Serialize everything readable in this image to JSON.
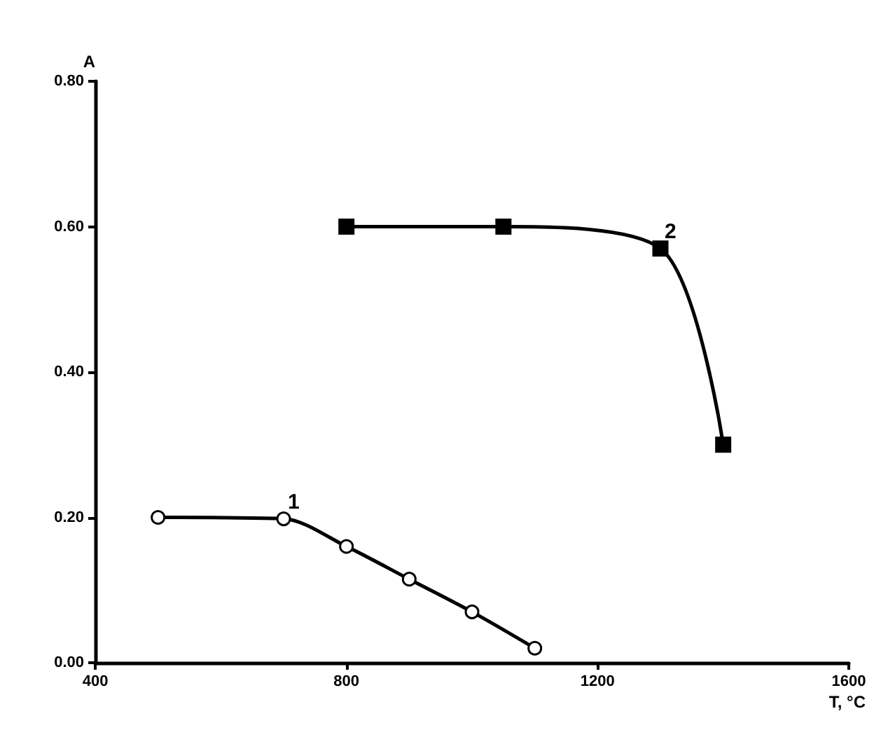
{
  "chart_data": {
    "type": "line",
    "xlabel": "T, °C",
    "ylabel": "A",
    "series": [
      {
        "color": "#000000",
        "marker": "circle",
        "x": [
          500,
          700,
          800,
          900,
          1000,
          1100
        ],
        "values": [
          0.2,
          0.198,
          0.16,
          0.115,
          0.07,
          0.02
        ]
      },
      {
        "color": "#000000",
        "marker": "square",
        "x": [
          800,
          1050,
          1300,
          1400
        ],
        "values": [
          0.6,
          0.6,
          0.57,
          0.3
        ]
      }
    ],
    "annotations": [
      {
        "text": "1",
        "x": 700,
        "y": 0.198
      },
      {
        "text": "2",
        "x": 1300,
        "y": 0.57
      }
    ],
    "xlim": [
      400,
      1600
    ],
    "xticks": [
      400,
      800,
      1200,
      1600
    ],
    "ylim": [
      0,
      0.8
    ],
    "yticks": [
      {
        "value": 0,
        "label": "0.00"
      },
      {
        "value": 0.2,
        "label": "0.20"
      },
      {
        "value": 0.4,
        "label": "0.40"
      },
      {
        "value": 0.6,
        "label": "0.60"
      },
      {
        "value": 0.8,
        "label": "0.80"
      }
    ],
    "grid": false
  }
}
